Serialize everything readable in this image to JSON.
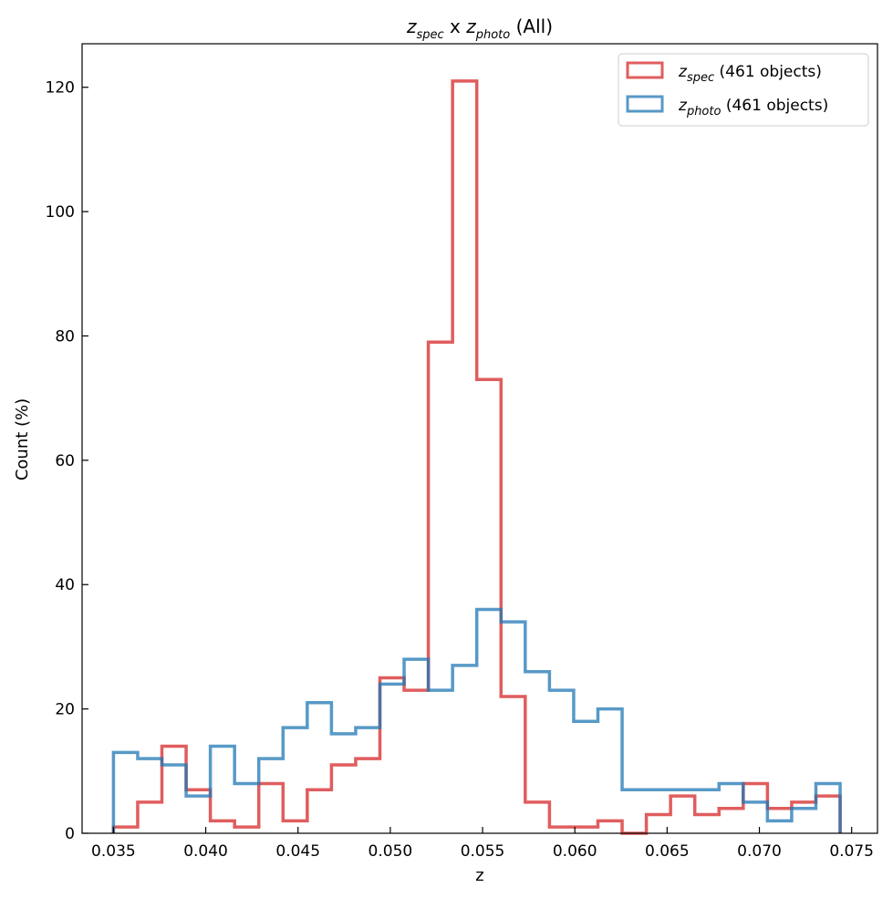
{
  "chart_data": {
    "type": "histogram-step",
    "title_parts": {
      "var": "z",
      "spec_sub": "spec",
      "mid": " x ",
      "photo_sub": "photo",
      "suffix": " (All)"
    },
    "xlabel": "z",
    "ylabel": "Count (%)",
    "xlim": [
      0.0333,
      0.0764
    ],
    "ylim": [
      0,
      127
    ],
    "xticks": [
      "0.035",
      "0.040",
      "0.045",
      "0.050",
      "0.055",
      "0.060",
      "0.065",
      "0.070",
      "0.075"
    ],
    "yticks": [
      "0",
      "20",
      "40",
      "60",
      "80",
      "100",
      "120"
    ],
    "bin_start": 0.035,
    "bin_width": 0.0013125,
    "grid": false,
    "legend_position": "top-right",
    "series": [
      {
        "name_sub": "spec",
        "name_suffix": " (461 objects)",
        "color": "#d62728",
        "values": [
          1,
          5,
          14,
          7,
          2,
          1,
          8,
          2,
          7,
          11,
          12,
          25,
          23,
          79,
          121,
          73,
          22,
          5,
          1,
          1,
          2,
          0,
          3,
          6,
          3,
          4,
          8,
          4,
          5,
          6
        ]
      },
      {
        "name_sub": "photo",
        "name_suffix": " (461 objects)",
        "color": "#1f77b4",
        "values": [
          13,
          12,
          11,
          6,
          14,
          8,
          12,
          17,
          21,
          16,
          17,
          24,
          28,
          23,
          27,
          36,
          34,
          26,
          23,
          18,
          20,
          7,
          7,
          7,
          7,
          8,
          5,
          2,
          4,
          8
        ]
      }
    ]
  }
}
